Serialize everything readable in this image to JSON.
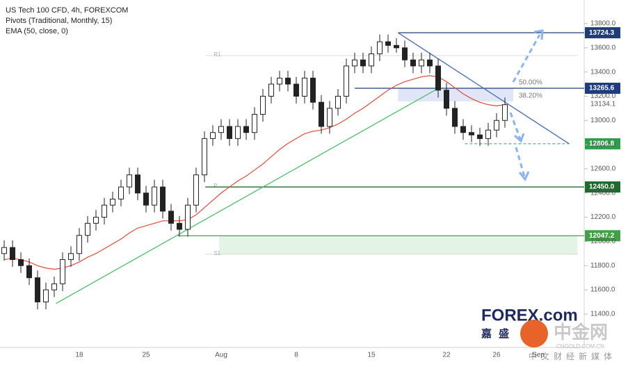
{
  "chart_data": {
    "type": "candlestick",
    "title": "US Tech 100 CFD, 4h, FOREXCOM",
    "indicators": [
      "Pivots (Traditional, Monthly, 15)",
      "EMA (50, close, 0)"
    ],
    "watermark": [
      "FOREX.com",
      "嘉盛",
      "中金网",
      "CNGOLD.COM.CN",
      "中文财经新媒体"
    ],
    "categories": [
      null,
      null,
      null,
      null,
      null,
      null,
      null,
      null,
      null,
      "18",
      null,
      null,
      null,
      null,
      null,
      null,
      null,
      "25",
      null,
      null,
      null,
      null,
      null,
      null,
      null,
      null,
      "Aug",
      null,
      null,
      null,
      null,
      null,
      null,
      null,
      null,
      "8",
      null,
      null,
      null,
      null,
      null,
      null,
      null,
      null,
      "15",
      null,
      null,
      null,
      null,
      null,
      null,
      null,
      null,
      "22",
      null,
      null,
      null,
      null,
      null,
      "26",
      null,
      null,
      null,
      null,
      "Sep",
      null,
      null,
      null,
      null,
      null
    ],
    "open": [
      11900,
      11950,
      11850,
      11800,
      11700,
      11500,
      11600,
      11650,
      11850,
      11900,
      12050,
      12150,
      12200,
      12300,
      12350,
      12450,
      12550,
      12400,
      12300,
      12450,
      12250,
      12150,
      12100,
      12300,
      12550,
      12850,
      12900,
      12950,
      12850,
      12950,
      12900,
      13050,
      13200,
      13300,
      13350,
      13300,
      13200,
      13350,
      13150,
      12950,
      13100,
      13200,
      13450,
      13500,
      13450,
      13550,
      13650,
      13620,
      13600,
      13500,
      13450,
      13500,
      13450,
      13250,
      13100,
      12950,
      12900,
      12880,
      12850,
      12920,
      13000,
      null,
      null,
      null,
      null,
      null,
      null,
      null,
      null,
      null
    ],
    "high": [
      12010,
      12010,
      11910,
      11860,
      11760,
      11660,
      11710,
      11910,
      11960,
      12110,
      12210,
      12260,
      12360,
      12410,
      12510,
      12610,
      12610,
      12460,
      12510,
      12510,
      12310,
      12210,
      12360,
      12610,
      12910,
      12960,
      13010,
      13010,
      13010,
      13010,
      13110,
      13260,
      13360,
      13410,
      13410,
      13360,
      13410,
      13410,
      13210,
      13160,
      13260,
      13510,
      13560,
      13560,
      13610,
      13710,
      13710,
      13680,
      13660,
      13560,
      13560,
      13560,
      13510,
      13310,
      13160,
      13010,
      12960,
      12940,
      12980,
      13060,
      13190,
      null,
      null,
      null,
      null,
      null,
      null,
      null,
      null,
      null
    ],
    "low": [
      11840,
      11790,
      11740,
      11640,
      11440,
      11440,
      11540,
      11590,
      11790,
      11840,
      11990,
      12090,
      12140,
      12240,
      12290,
      12390,
      12340,
      12240,
      12240,
      12190,
      12090,
      12040,
      12040,
      12240,
      12490,
      12790,
      12840,
      12790,
      12790,
      12840,
      12840,
      12990,
      13140,
      13240,
      13240,
      13140,
      13140,
      13090,
      12890,
      12890,
      13040,
      13140,
      13390,
      13390,
      13390,
      13490,
      13560,
      13560,
      13440,
      13390,
      13390,
      13390,
      13190,
      13040,
      12890,
      12840,
      12820,
      12790,
      12790,
      12860,
      12940,
      null,
      null,
      null,
      null,
      null,
      null,
      null,
      null,
      null
    ],
    "close": [
      11950,
      11850,
      11800,
      11700,
      11500,
      11600,
      11650,
      11850,
      11900,
      12050,
      12150,
      12200,
      12300,
      12350,
      12450,
      12550,
      12400,
      12300,
      12450,
      12250,
      12150,
      12100,
      12300,
      12550,
      12850,
      12900,
      12950,
      12850,
      12950,
      12900,
      13050,
      13200,
      13300,
      13350,
      13300,
      13200,
      13350,
      13150,
      12950,
      13100,
      13200,
      13450,
      13500,
      13450,
      13550,
      13650,
      13620,
      13600,
      13500,
      13450,
      13500,
      13450,
      13250,
      13100,
      12950,
      12900,
      12880,
      12850,
      12920,
      13000,
      13130,
      null,
      null,
      null,
      null,
      null,
      null,
      null,
      null,
      null
    ],
    "ema": {
      "color": "#e04a3a",
      "values": [
        11850,
        11860,
        11850,
        11830,
        11800,
        11780,
        11770,
        11780,
        11800,
        11830,
        11870,
        11900,
        11940,
        11980,
        12020,
        12070,
        12110,
        12130,
        12150,
        12170,
        12170,
        12170,
        12180,
        12220,
        12280,
        12340,
        12400,
        12450,
        12500,
        12540,
        12590,
        12640,
        12700,
        12760,
        12810,
        12850,
        12890,
        12910,
        12920,
        12940,
        12970,
        13010,
        13060,
        13100,
        13150,
        13200,
        13250,
        13290,
        13320,
        13340,
        13360,
        13370,
        13360,
        13320,
        13270,
        13220,
        13180,
        13150,
        13130,
        13120,
        13130,
        null,
        null,
        null,
        null,
        null,
        null,
        null,
        null,
        null
      ],
      "last": 13134.1
    },
    "levels": {
      "values": [
        13724.3,
        13265.6,
        12806.8,
        12450,
        12047.2
      ],
      "value_labels": [
        "13724.3",
        "13265.6",
        "12806.8",
        "12450.0",
        "12047.2"
      ],
      "colors": [
        "#1f3d7a",
        "#1f3d7a",
        "#2e9e4a",
        "#1e6b2e",
        "#43a047"
      ],
      "dashed": [
        false,
        false,
        true,
        false,
        false
      ],
      "from": [
        47.2,
        42,
        55.2,
        24.1,
        20.8
      ],
      "to": [
        69.5,
        69.5,
        67.7,
        69.5,
        69.5
      ]
    },
    "pivots": {
      "labels": [
        "R1",
        "P",
        "S1"
      ],
      "values": [
        13536,
        12450,
        11894
      ],
      "from": 24.1,
      "to": 68.7
    },
    "fib": {
      "high": 13724.3,
      "low": 12806.8,
      "from": 47.2,
      "to": 61,
      "levels": [
        {
          "value": 50,
          "label": "50.00%"
        },
        {
          "value": 38.2,
          "label": "38.20%"
        }
      ]
    },
    "trendlines": [
      {
        "color": "#4a6bb5",
        "from": [
          47.2,
          13724.3
        ],
        "to": [
          67.7,
          12806.8
        ]
      },
      {
        "color": "#4cbf6a",
        "from": [
          6.2,
          11487
        ],
        "to": [
          52.2,
          13272
        ]
      }
    ],
    "ylim": [
      11124,
      13995
    ],
    "yticks": [
      {
        "value": 11400,
        "label": "11400.0"
      },
      {
        "value": 11600,
        "label": "11600.0"
      },
      {
        "value": 11800,
        "label": "11800.0"
      },
      {
        "value": 12000,
        "label": "12000.0"
      },
      {
        "value": 12200,
        "label": "12200.0"
      },
      {
        "value": 12400,
        "label": "12400.0"
      },
      {
        "value": 12600,
        "label": "12600.0"
      },
      {
        "value": 12800,
        "label": "12800.0"
      },
      {
        "value": 13000,
        "label": "13000.0"
      },
      {
        "value": 13200,
        "label": "13200.0"
      },
      {
        "value": 13400,
        "label": "13400.0"
      },
      {
        "value": 13600,
        "label": "13600.0"
      },
      {
        "value": 13800,
        "label": "13800.0"
      }
    ]
  }
}
